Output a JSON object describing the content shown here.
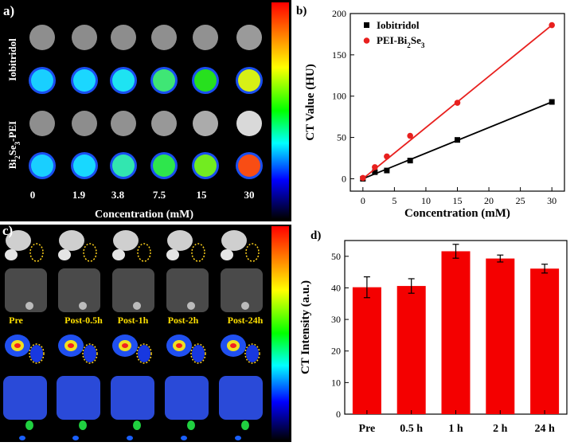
{
  "panel_a": {
    "label": "a)",
    "row_labels": [
      "Iobitridol",
      "Bi2Se3-PEI"
    ],
    "row_label_bi_parts": [
      "Bi",
      "2",
      "Se",
      "3",
      "-PEI"
    ],
    "concentrations": [
      "0",
      "1.9",
      "3.8",
      "7.5",
      "15",
      "30"
    ],
    "xlabel": "Concentration (mM)",
    "rows": [
      {
        "type": "gray",
        "shades": [
          "#8e8e8e",
          "#8c8c8c",
          "#8d8d8d",
          "#8f8f8f",
          "#919191",
          "#9a9a9a"
        ]
      },
      {
        "type": "color",
        "fills": [
          "#19cfff",
          "#1bd7ff",
          "#1ee3f2",
          "#3fe675",
          "#27e01e",
          "#d7f016"
        ]
      },
      {
        "type": "gray",
        "shades": [
          "#8e8e8e",
          "#8d8d8d",
          "#919191",
          "#989898",
          "#ababab",
          "#d9d9d9"
        ]
      },
      {
        "type": "color",
        "fills": [
          "#19cfff",
          "#18d8ff",
          "#32e6b0",
          "#2ee64c",
          "#72ec20",
          "#f84d14"
        ]
      }
    ]
  },
  "panel_c": {
    "label": "c)",
    "timepoints": [
      "Pre",
      "Post-0.5h",
      "Post-1h",
      "Post-2h",
      "Post-24h"
    ]
  },
  "colors": {
    "black_series": "#000000",
    "red_series": "#e8201e",
    "bar": "#f40000"
  },
  "chart_data": [
    {
      "label": "b)",
      "type": "line",
      "xlabel": "Concentration (mM)",
      "ylabel": "CT Value (HU)",
      "xlim": [
        -2,
        32
      ],
      "ylim": [
        -15,
        200
      ],
      "xticks": [
        0,
        5,
        10,
        15,
        20,
        25,
        30
      ],
      "yticks": [
        0,
        50,
        100,
        150,
        200
      ],
      "legend_position": "top-left",
      "series": [
        {
          "name": "Iobitridol",
          "marker": "square",
          "x": [
            0,
            1.9,
            3.8,
            7.5,
            15,
            30
          ],
          "y": [
            0,
            8,
            10,
            22,
            47,
            93
          ],
          "fit": [
            0.0,
            3.1
          ]
        },
        {
          "name": "PEI-Bi2Se3",
          "name_parts": [
            "PEI-Bi",
            "2",
            "Se",
            "3"
          ],
          "marker": "circle",
          "x": [
            0,
            1.9,
            3.8,
            7.5,
            15,
            30
          ],
          "y": [
            1,
            14,
            27,
            52,
            92,
            186
          ],
          "fit": [
            0.0,
            6.2
          ]
        }
      ]
    },
    {
      "label": "d)",
      "type": "bar",
      "xlabel": "",
      "ylabel": "CT Intensity (a.u.)",
      "ylim": [
        0,
        55
      ],
      "yticks": [
        0,
        10,
        20,
        30,
        40,
        50
      ],
      "categories": [
        "Pre",
        "0.5 h",
        "1 h",
        "2 h",
        "24 h"
      ],
      "values": [
        40.2,
        40.6,
        51.6,
        49.3,
        46.1
      ],
      "errors": [
        3.3,
        2.3,
        2.2,
        1.1,
        1.4
      ]
    }
  ]
}
